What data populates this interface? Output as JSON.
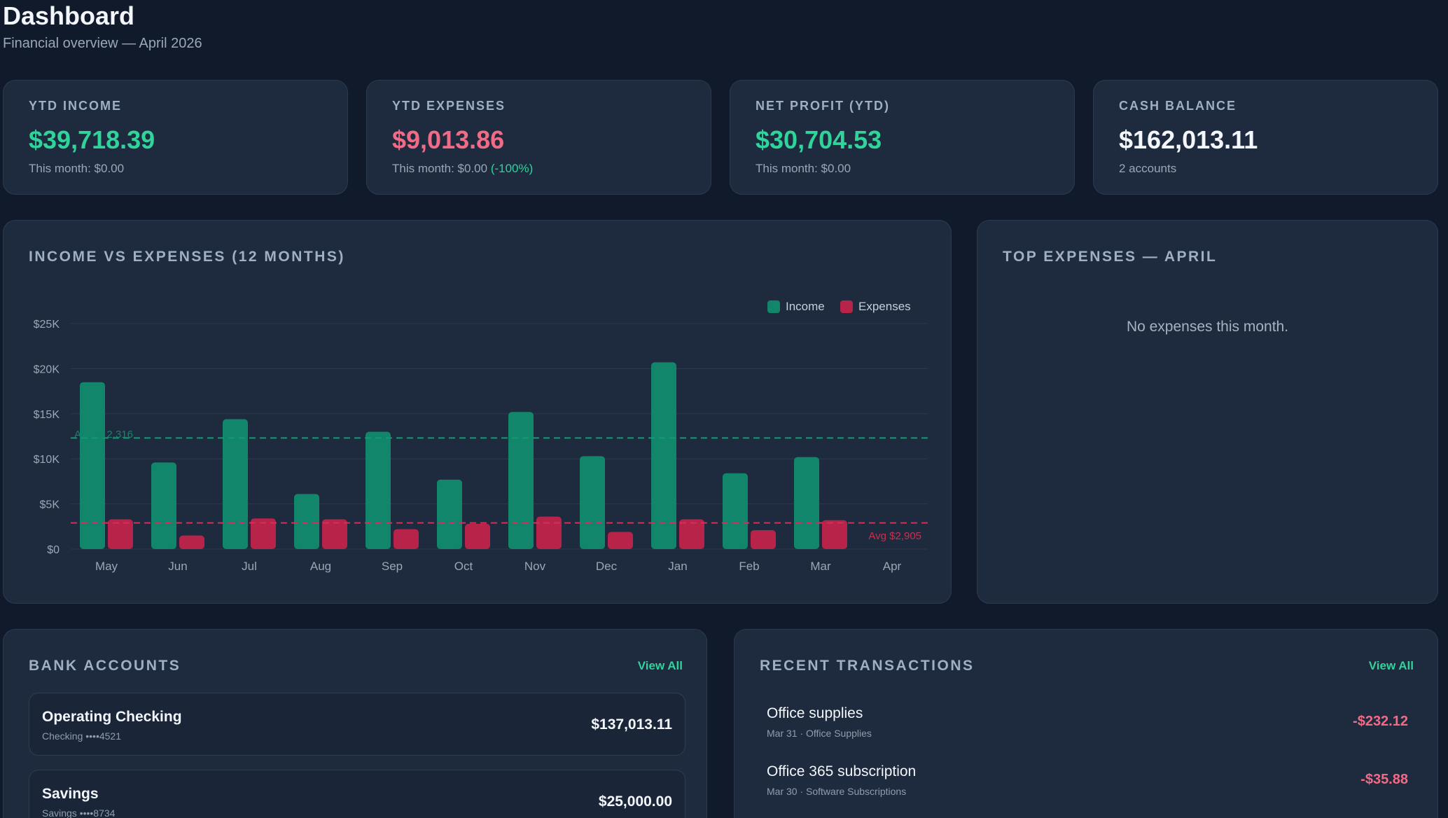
{
  "header": {
    "title": "Dashboard",
    "subtitle": "Financial overview — April 2026"
  },
  "kpis": {
    "income": {
      "label": "YTD INCOME",
      "value": "$39,718.39",
      "sub": "This month: $0.00"
    },
    "expenses": {
      "label": "YTD EXPENSES",
      "value": "$9,013.86",
      "sub": "This month: $0.00",
      "change": "(-100%)"
    },
    "profit": {
      "label": "NET PROFIT (YTD)",
      "value": "$30,704.53",
      "sub": "This month: $0.00"
    },
    "cash": {
      "label": "CASH BALANCE",
      "value": "$162,013.11",
      "sub": "2 accounts"
    }
  },
  "income_chart": {
    "title": "INCOME VS EXPENSES (12 MONTHS)",
    "legend": {
      "income": "Income",
      "expenses": "Expenses"
    },
    "income_avg_label": "Avg $12,316",
    "expense_avg_label": "Avg $2,905"
  },
  "top_expenses": {
    "title": "TOP EXPENSES — APRIL",
    "empty": "No expenses this month."
  },
  "bank_accounts": {
    "title": "BANK ACCOUNTS",
    "view_all": "View All",
    "items": [
      {
        "name": "Operating Checking",
        "meta": "Checking ••••4521",
        "balance": "$137,013.11"
      },
      {
        "name": "Savings",
        "meta": "Savings ••••8734",
        "balance": "$25,000.00"
      }
    ]
  },
  "transactions": {
    "title": "RECENT TRANSACTIONS",
    "view_all": "View All",
    "items": [
      {
        "name": "Office supplies",
        "meta": "Mar 31 · Office Supplies",
        "amount": "-$232.12"
      },
      {
        "name": "Office 365 subscription",
        "meta": "Mar 30 · Software Subscriptions",
        "amount": "-$35.88"
      }
    ]
  },
  "colors": {
    "income": "#11866a",
    "expenses": "#b8234a",
    "accent_green": "#2ed49a",
    "accent_red": "#f26b86"
  },
  "chart_data": {
    "type": "bar",
    "categories": [
      "May",
      "Jun",
      "Jul",
      "Aug",
      "Sep",
      "Oct",
      "Nov",
      "Dec",
      "Jan",
      "Feb",
      "Mar",
      "Apr"
    ],
    "series": [
      {
        "name": "Income",
        "values": [
          18500,
          9600,
          14400,
          6100,
          13000,
          7700,
          15200,
          10300,
          20700,
          8400,
          10200,
          0
        ]
      },
      {
        "name": "Expenses",
        "values": [
          3300,
          1500,
          3400,
          3300,
          2200,
          2800,
          3600,
          1900,
          3300,
          2100,
          3200,
          0
        ]
      }
    ],
    "yticks": [
      "$0",
      "$5K",
      "$10K",
      "$15K",
      "$20K",
      "$25K"
    ],
    "ylim": [
      0,
      25000
    ],
    "income_avg": 12316,
    "expense_avg": 2905,
    "legend_position": "top-right",
    "grid": true
  }
}
